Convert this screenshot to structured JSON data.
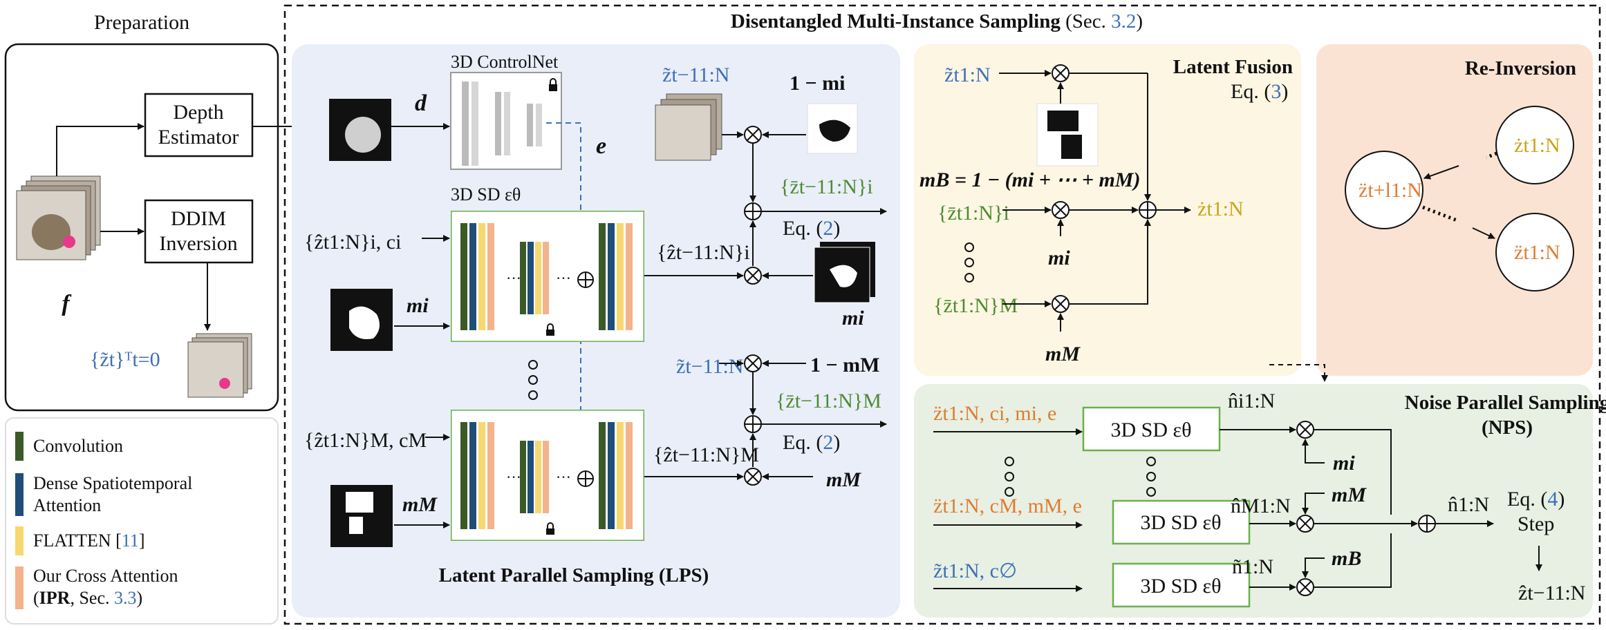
{
  "preparation": {
    "title": "Preparation",
    "depth_estimator": [
      "Depth",
      "Estimator"
    ],
    "ddim_inversion": [
      "DDIM",
      "Inversion"
    ],
    "frames_label": "f",
    "inverted_latents": "{z̃t}ᵀt=0"
  },
  "legend": [
    {
      "label": "Convolution",
      "color": "#3b5a26"
    },
    {
      "label": "Dense Spatiotemporal Attention",
      "color": "#1f4e79"
    },
    {
      "label": "FLATTEN [11]",
      "color": "#f7d870"
    },
    {
      "label": "Our Cross Attention (IPR, Sec. 3.3)",
      "color": "#f4b38a"
    }
  ],
  "dmis": {
    "title": "Disentangled Multi-Instance Sampling",
    "ref": "(Sec. 3.2)"
  },
  "lps": {
    "title": "Latent Parallel Sampling (LPS)",
    "controlnet": "3D ControlNet",
    "sd_label": "3D SD εθ",
    "depth": "d",
    "control_signal": "e",
    "input_i": "{ẑt1:N}i, ci",
    "input_M": "{ẑt1:N}M, cM",
    "mask_i": "mi",
    "mask_M": "mM",
    "out_i": "{ẑt−11:N}i",
    "out_M": "{ẑt−11:N}M",
    "inv_prev": "z̃t−11:N",
    "one_minus_mi": "1 − mi",
    "one_minus_mM": "1 − mM",
    "fused_i": "{z̄t−11:N}i",
    "fused_M": "{z̄t−11:N}M",
    "eq": "Eq. (2)"
  },
  "latent_fusion": {
    "title": "Latent Fusion",
    "eq": "Eq. (3)",
    "inv": "z̃t1:N",
    "mb": "mB = 1 − (mi + ⋯ + mM)",
    "zi": "{z̄t1:N}i",
    "zM": "{z̄t1:N}M",
    "mi": "mi",
    "mM": "mM",
    "out": "żt1:N"
  },
  "reinversion": {
    "title": "Re-Inversion",
    "top": "żt1:N",
    "left": "z̈t+l1:N",
    "bottom": "z̈t1:N"
  },
  "nps": {
    "title": [
      "Noise Parallel Sampling",
      "(NPS)"
    ],
    "sd_label": "3D SD εθ",
    "in_i": "z̈t1:N, ci, mi, e",
    "in_M": "z̈t1:N, cM, mM, e",
    "in_null": "z̃t1:N, c∅",
    "n_i": "n̂i1:N",
    "n_M": "n̂M1:N",
    "n_null": "ñ1:N",
    "mi": "mi",
    "mM": "mM",
    "mB": "mB",
    "n_out": "n̂1:N",
    "eq": "Eq. (4)",
    "step": "Step",
    "out": "ẑt−11:N"
  }
}
